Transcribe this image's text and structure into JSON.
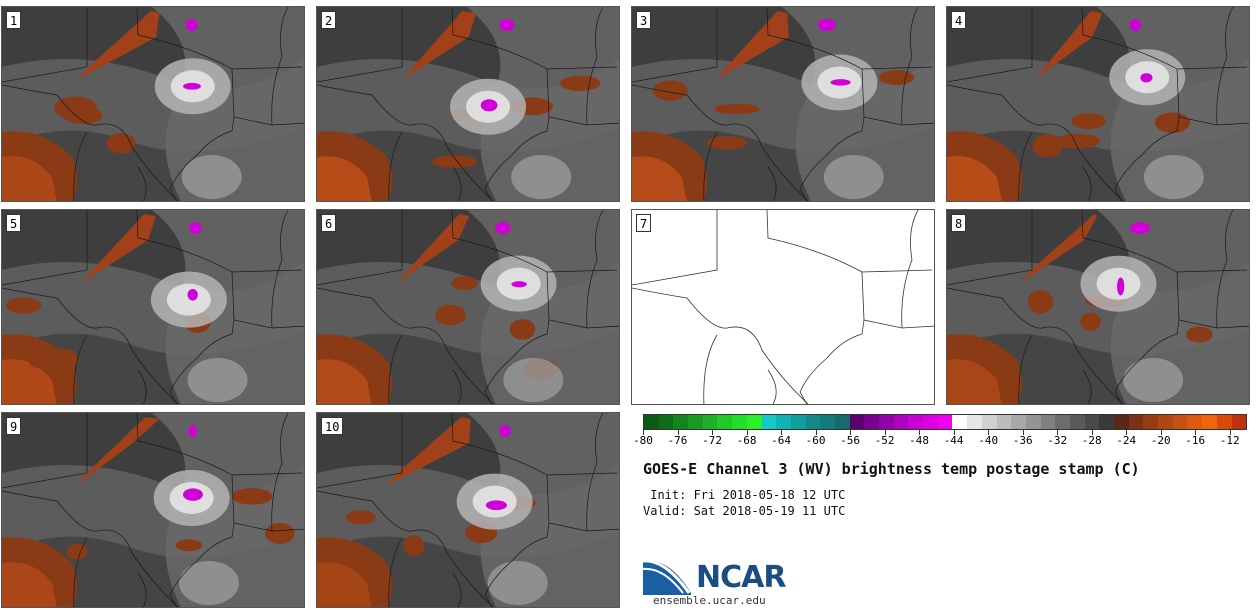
{
  "title": "GOES-E Channel 3 (WV) brightness temp postage stamp (C)",
  "init": " Init: Fri 2018-05-18 12 UTC",
  "valid": "Valid: Sat 2018-05-19 11 UTC",
  "logo": {
    "name": "NCAR",
    "url": "ensemble.ucar.edu"
  },
  "panels": [
    {
      "label": "1",
      "has_data": true
    },
    {
      "label": "2",
      "has_data": true
    },
    {
      "label": "3",
      "has_data": true
    },
    {
      "label": "4",
      "has_data": true
    },
    {
      "label": "5",
      "has_data": true
    },
    {
      "label": "6",
      "has_data": true
    },
    {
      "label": "7",
      "has_data": false
    },
    {
      "label": "8",
      "has_data": true
    },
    {
      "label": "9",
      "has_data": true
    },
    {
      "label": "10",
      "has_data": true
    }
  ],
  "colorbar": {
    "min": -80,
    "max": -10,
    "ticks": [
      "-80",
      "-76",
      "-72",
      "-68",
      "-64",
      "-60",
      "-56",
      "-52",
      "-48",
      "-44",
      "-40",
      "-36",
      "-32",
      "-28",
      "-24",
      "-20",
      "-16",
      "-12"
    ],
    "colors": [
      "#0b5a16",
      "#0f6e1c",
      "#14841f",
      "#1a9a24",
      "#1fb125",
      "#22c826",
      "#22de26",
      "#2cf027",
      "#12c8c8",
      "#10b4b4",
      "#119e9e",
      "#128888",
      "#157a7a",
      "#176b6b",
      "#5c0070",
      "#7a0090",
      "#9600a8",
      "#b000c0",
      "#c800d4",
      "#dc00e0",
      "#ee00ee",
      "#ffffff",
      "#e6e6e6",
      "#d0d0d0",
      "#bcbcbc",
      "#a8a8a8",
      "#949494",
      "#808080",
      "#6c6c6c",
      "#5a5a5a",
      "#4a4a4a",
      "#3a3a3a",
      "#5a2818",
      "#7a3216",
      "#963c14",
      "#b04612",
      "#c85010",
      "#e05a0e",
      "#f0640c",
      "#d84a0a",
      "#c0300a"
    ]
  }
}
